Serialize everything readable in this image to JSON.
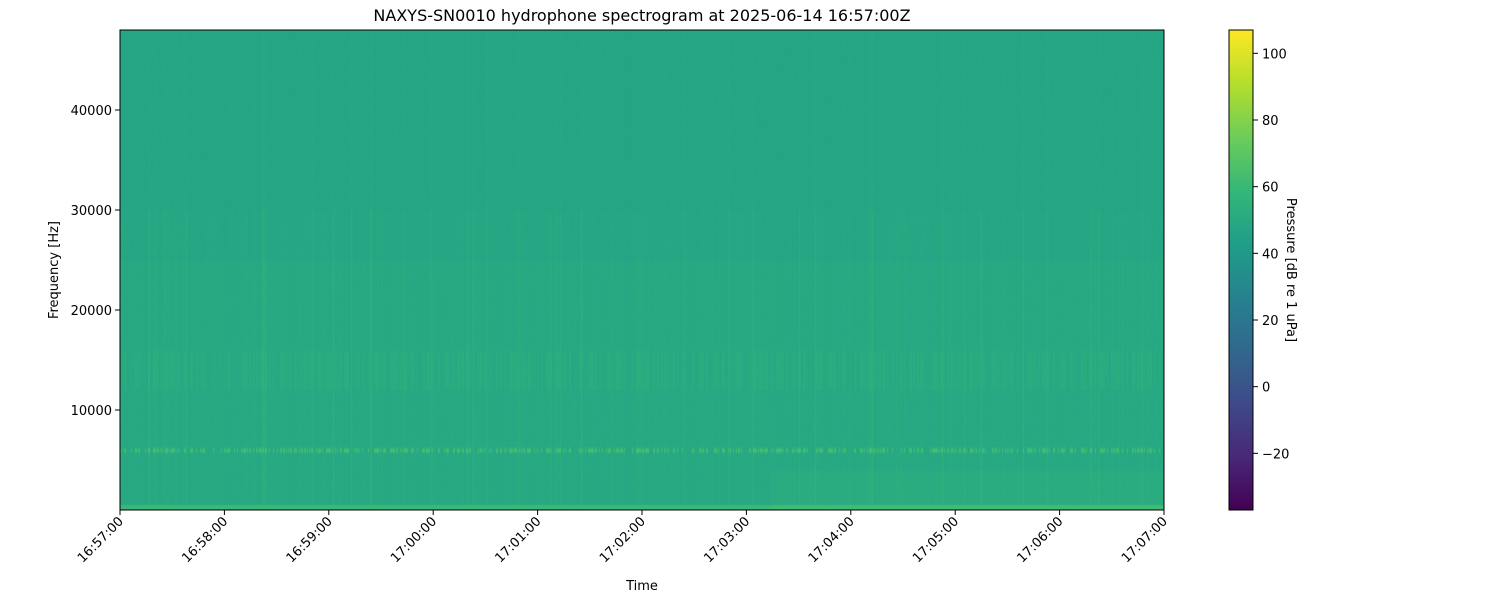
{
  "chart_data": {
    "type": "heatmap",
    "title": "NAXYS-SN0010 hydrophone spectrogram at 2025-06-14 16:57:00Z",
    "xlabel": "Time",
    "ylabel": "Frequency [Hz]",
    "colorbar_label": "Pressure [dB re 1 uPa]",
    "colormap": "viridis",
    "x_ticks": [
      "16:57:00",
      "16:58:00",
      "16:59:00",
      "17:00:00",
      "17:01:00",
      "17:02:00",
      "17:03:00",
      "17:04:00",
      "17:05:00",
      "17:06:00",
      "17:07:00"
    ],
    "xlim": [
      "16:57:00",
      "17:07:00"
    ],
    "y_ticks": [
      10000,
      20000,
      30000,
      40000
    ],
    "ylim": [
      0,
      48000
    ],
    "colorbar_ticks": [
      -20,
      0,
      20,
      40,
      60,
      80,
      100
    ],
    "clim": [
      -37,
      107
    ],
    "features": {
      "background_level_db": 47,
      "tonal_band_hz": 6000,
      "tonal_band_level_db": 65,
      "broadband_band_hz": [
        12000,
        16000
      ],
      "low_frequency_level_db": 60
    },
    "grid": false
  }
}
